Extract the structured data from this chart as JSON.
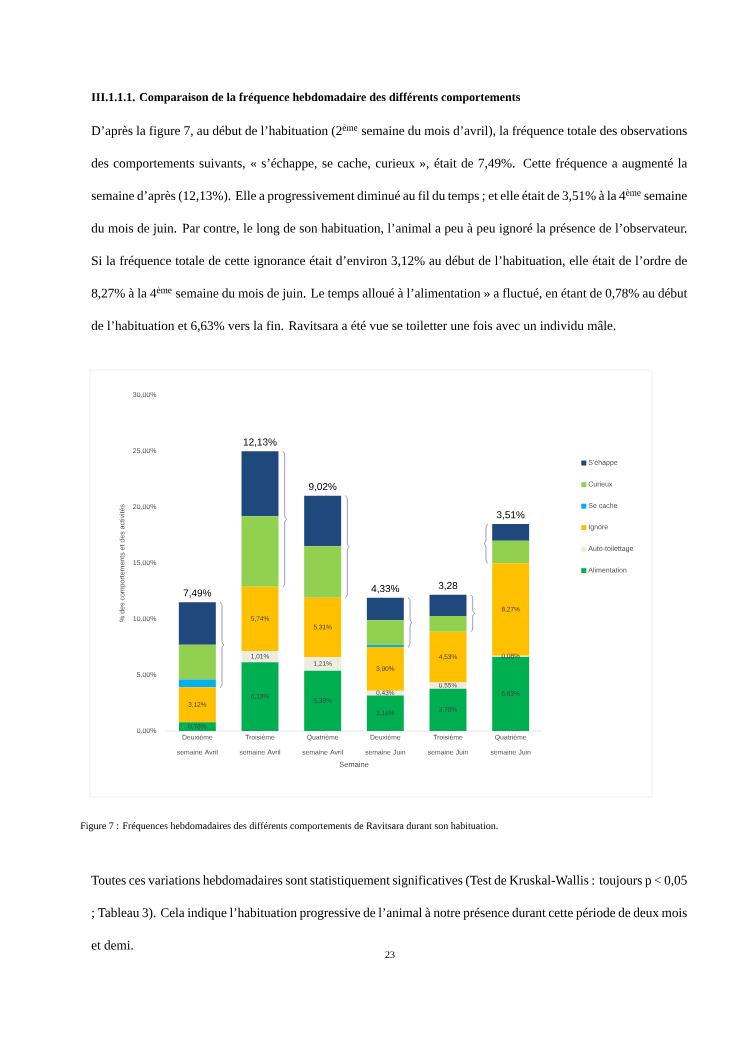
{
  "chart_data": {
    "type": "bar",
    "stacked": true,
    "title": "Figure 7 : Fréquences hebdomadaires des différents comportements de Ravitsara durant son habituation.",
    "xlabel": "Semaine",
    "ylabel": "% des comportements et des activités",
    "categories": [
      "Deuxième semaine Avril",
      "Troisième semaine Avril",
      "Quatrième semaine Avril",
      "Deuxième semaine Juin",
      "Troisième semaine Juin",
      "Quatrième semaine Juin"
    ],
    "series": [
      {
        "name": "Alimentation",
        "color": "#00b050",
        "values": [
          0.78,
          6.13,
          5.38,
          3.16,
          3.78,
          6.63
        ],
        "value_labels": [
          "0,78%",
          "6,13%",
          "5,38%",
          "3,16%",
          "3,78%",
          "6,63%"
        ]
      },
      {
        "name": "Auto-toilettage",
        "color": "#eeece1",
        "values": [
          0,
          1.01,
          1.21,
          0.43,
          0.55,
          0.08
        ],
        "value_labels": [
          null,
          "1,01%",
          "1,21%",
          "0,43%",
          "0,55%",
          "0,08%"
        ]
      },
      {
        "name": "Ignore",
        "color": "#ffc000",
        "values": [
          3.12,
          5.74,
          5.31,
          3.9,
          4.53,
          8.27
        ],
        "value_labels": [
          "3,12%",
          "5,74%",
          "5,31%",
          "3,90%",
          "4,53%",
          "8,27%"
        ]
      },
      {
        "name": "Se cache",
        "color": "#00b0f0",
        "values": [
          0.7,
          0,
          0,
          0.2,
          0,
          0
        ]
      },
      {
        "name": "Curieux",
        "color": "#92d050",
        "values": [
          3.1,
          6.3,
          4.6,
          2.2,
          1.4,
          2.0
        ]
      },
      {
        "name": "S'éhappe",
        "color": "#1f497d",
        "values": [
          3.8,
          5.8,
          4.5,
          2.0,
          1.9,
          1.5
        ]
      }
    ],
    "ylim": [
      0,
      30
    ],
    "yticks": [
      {
        "value": 0,
        "label": "0,00%"
      },
      {
        "value": 5,
        "label": "5,00%"
      },
      {
        "value": 10,
        "label": "10,00%"
      },
      {
        "value": 15,
        "label": "15,00%"
      },
      {
        "value": 20,
        "label": "20,00%"
      },
      {
        "value": 25,
        "label": "25,00%"
      },
      {
        "value": 30,
        "label": "30,00%"
      }
    ],
    "grid": false,
    "legend": "right",
    "annotations": [
      "III.1.1.1. Comparaison de la fréquence hebdomadaire des différents comportements",
      "D’après la figure 7, au début de l’habituation (2$^{ème}$ semaine du mois d’avril), la fréquence totale des observations des comportements suivants, « s’échappe, se cache, curieux », était de 7,49%. Cette fréquence a augmenté la semaine d’après (12,13%). Elle a progressivement diminué au fil du temps ; et elle était de 3,51% à la 4$^{ème}$ semaine du mois de juin. Par contre, le long de son habituation, l’animal a peu à peu ignoré la présence de l’observateur. Si la fréquence totale de cette ignorance était d’environ 3,12% au début de l’habituation, elle était de l’ordre de 8,27% à la 4$^{ème}$ semaine du mois de juin. Le temps alloué à l’alimentation » a fluctué, en étant de 0,78% au début de l’habituation et 6,63% vers la fin. Ravitsara a été vue se toiletter une fois avec un individu mâle.",
      "Toutes ces variations hebdomadaires sont statistiquement significatives (Test de Kruskal-Wallis : toujours p < 0,05 ; Tableau 3). Cela indique l’habituation progressive de l’animal à notre présence durant cette période de deux mois et demi.",
      "23",
      "7,49%",
      "12,13%",
      "9,02%",
      "4,33%",
      "3,28",
      "3,51%"
    ]
  }
}
